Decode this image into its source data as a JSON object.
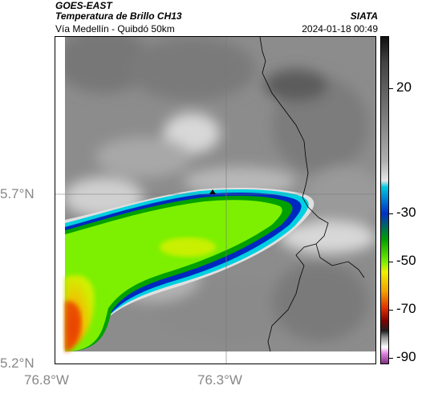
{
  "header": {
    "satellite": "GOES-EAST",
    "product": "Temperatura de Brillo CH13",
    "organization": "SIATA",
    "route": "Vía Medellín - Quibdó 50km",
    "timestamp": "2024-01-18 00:49"
  },
  "axes": {
    "lat_labels": [
      "5.7°N",
      "5.2°N"
    ],
    "lon_labels": [
      "76.8°W",
      "76.3°W"
    ]
  },
  "colorbar": {
    "labels": [
      "20",
      "-30",
      "-50",
      "-70",
      "-90"
    ],
    "stops": [
      {
        "color": "#111111"
      },
      {
        "color": "#444444"
      },
      {
        "color": "#7a7a7a"
      },
      {
        "color": "#b0b0b0"
      },
      {
        "color": "#e6e6e6"
      },
      {
        "color": "#00c8e0"
      },
      {
        "color": "#0030c8"
      },
      {
        "color": "#00a000"
      },
      {
        "color": "#7cf000"
      },
      {
        "color": "#f0f000"
      },
      {
        "color": "#f0a000"
      },
      {
        "color": "#e03000"
      },
      {
        "color": "#800000"
      },
      {
        "color": "#202020"
      },
      {
        "color": "#909090"
      },
      {
        "color": "#ffffff"
      },
      {
        "color": "#e080e0"
      },
      {
        "color": "#803080"
      }
    ]
  },
  "colors": {
    "cold_core": "#7cf000",
    "warm_ground": "#a0a0a0",
    "boundary": "#000000"
  }
}
